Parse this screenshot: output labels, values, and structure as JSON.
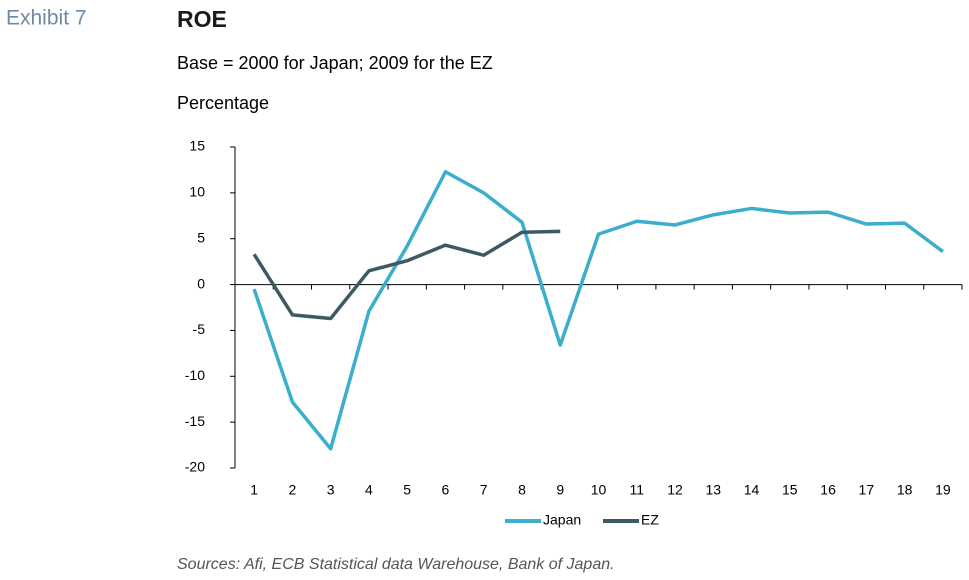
{
  "page": {
    "exhibit": "Exhibit 7",
    "source": "Sources: Afi, ECB Statistical data Warehouse, Bank of Japan."
  },
  "chart_data": {
    "type": "line",
    "title": "ROE",
    "subtitle": "Base = 2000 for Japan; 2009 for the EZ",
    "ylabel": "Percentage",
    "categories": [
      "1",
      "2",
      "3",
      "4",
      "5",
      "6",
      "7",
      "8",
      "9",
      "10",
      "11",
      "12",
      "13",
      "14",
      "15",
      "16",
      "17",
      "18",
      "19"
    ],
    "series": [
      {
        "name": "Japan",
        "color": "#3aaecb",
        "values": [
          -0.5,
          -12.8,
          -17.9,
          -2.9,
          4.2,
          12.3,
          10.0,
          6.8,
          -6.6,
          5.5,
          6.9,
          6.5,
          7.6,
          8.3,
          7.8,
          7.9,
          6.6,
          6.7,
          3.6
        ]
      },
      {
        "name": "EZ",
        "color": "#3d5a63",
        "values": [
          3.3,
          -3.3,
          -3.7,
          1.5,
          2.6,
          4.3,
          3.2,
          5.7,
          5.8,
          null,
          null,
          null,
          null,
          null,
          null,
          null,
          null,
          null,
          null
        ]
      }
    ],
    "ylim": [
      -20,
      15
    ],
    "yticks": [
      15,
      10,
      5,
      0,
      -5,
      -10,
      -15,
      -20
    ],
    "legend": "bottom"
  }
}
